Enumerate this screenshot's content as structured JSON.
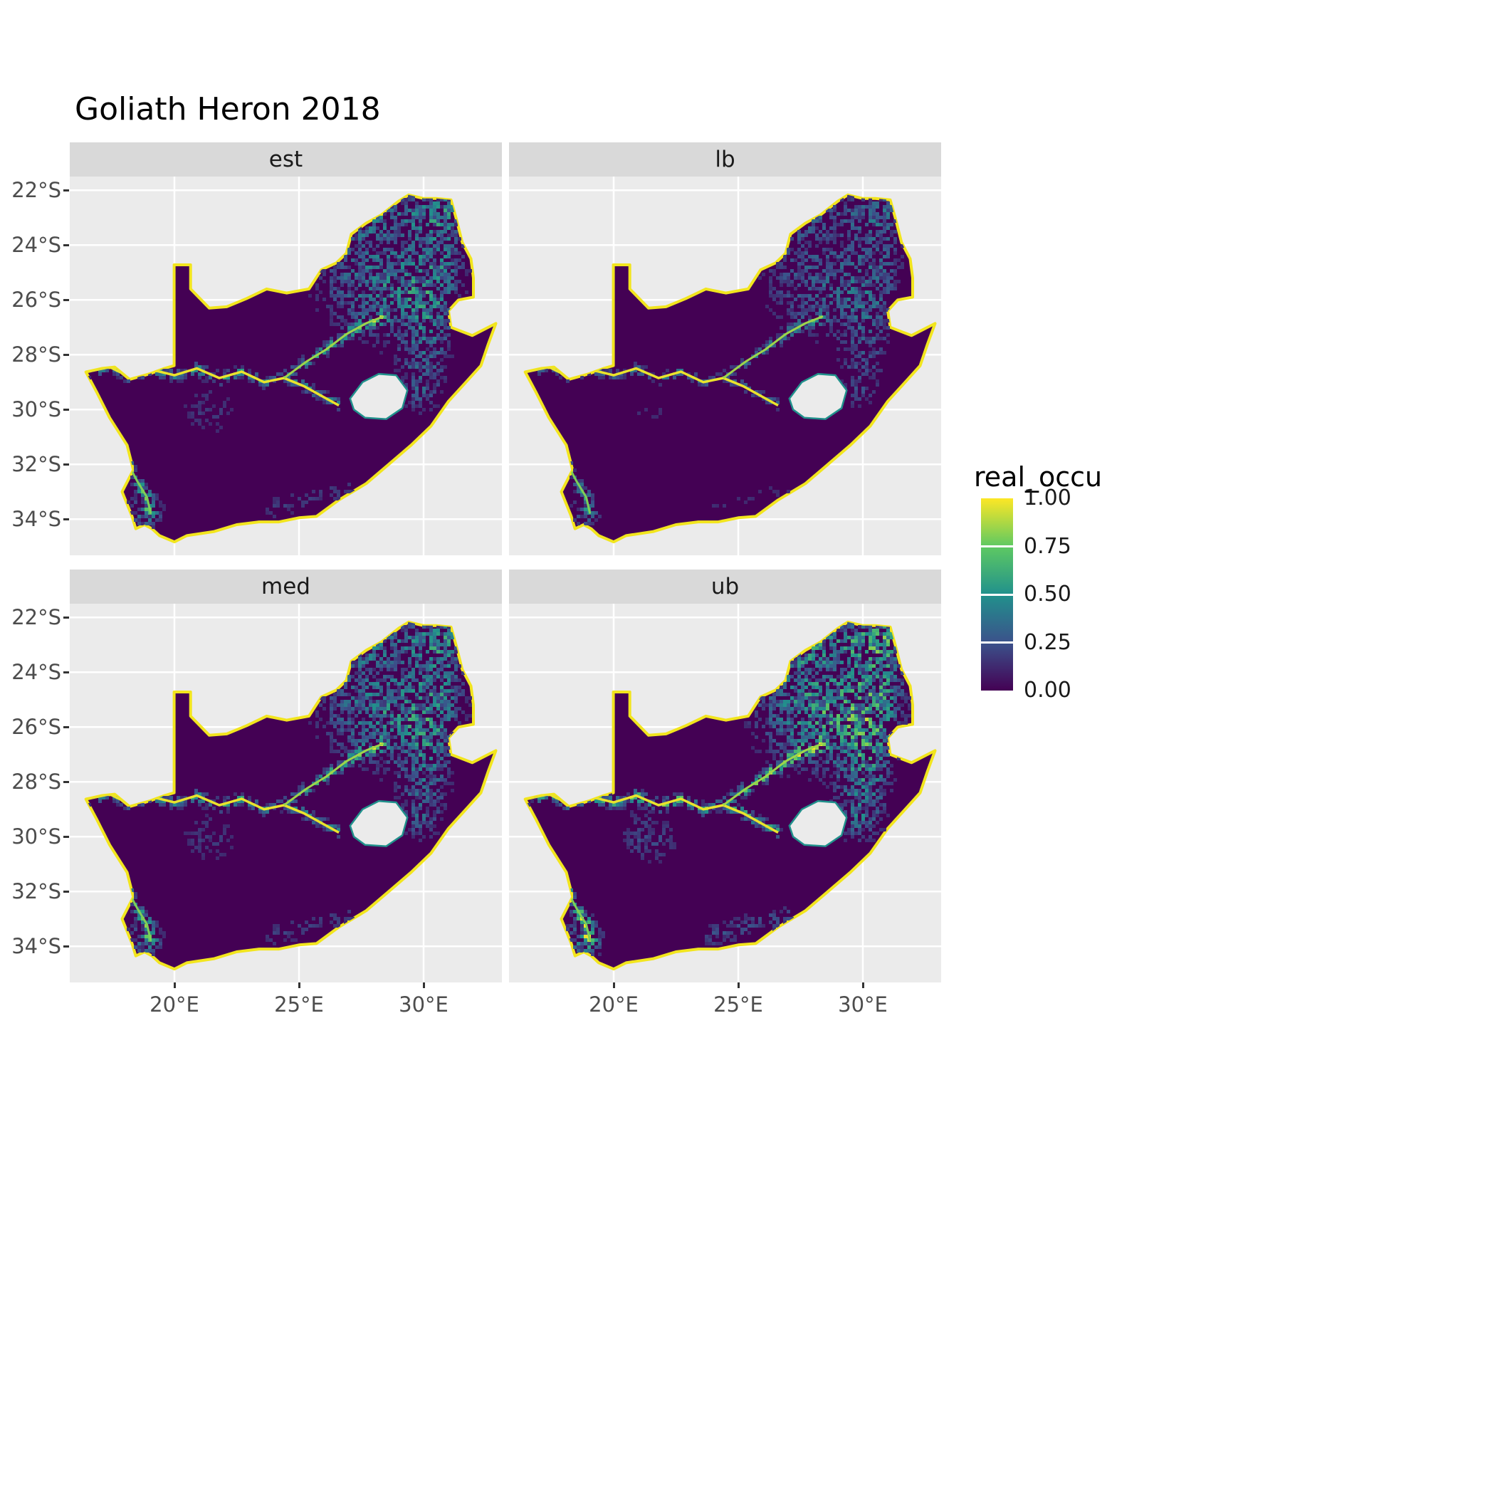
{
  "title": "Goliath Heron 2018",
  "facets": [
    {
      "label": "est"
    },
    {
      "label": "lb"
    },
    {
      "label": "med"
    },
    {
      "label": "ub"
    }
  ],
  "axes": {
    "y_ticks": [
      "22°S",
      "24°S",
      "26°S",
      "28°S",
      "30°S",
      "32°S",
      "34°S"
    ],
    "x_ticks": [
      "20°E",
      "25°E",
      "30°E"
    ]
  },
  "legend": {
    "title": "real_occu",
    "ticks": [
      "1.00",
      "0.75",
      "0.50",
      "0.25",
      "0.00"
    ]
  },
  "colors": {
    "background": "#FFFFFF",
    "panel_bg": "#EBEBEB",
    "strip_bg": "#D9D9D9",
    "grid": "#FFFFFF",
    "axis_text": "#4D4D4D",
    "strip_text": "#1A1A1A",
    "base_fill": "#440154",
    "coast_rim": "#F2E51E",
    "viridis": [
      "#440154",
      "#3B528B",
      "#21918C",
      "#5EC962",
      "#FDE725"
    ]
  },
  "chart_data": {
    "type": "heatmap",
    "title": "Goliath Heron 2018",
    "variable": "real_occu",
    "colormap": "viridis",
    "value_range": [
      0.0,
      1.0
    ],
    "legend_ticks": [
      1.0,
      0.75,
      0.5,
      0.25,
      0.0
    ],
    "facets": [
      "est",
      "lb",
      "med",
      "ub"
    ],
    "facet_relative_intensity": {
      "est": 1.0,
      "lb": 0.72,
      "med": 1.05,
      "ub": 1.35
    },
    "x_axis": {
      "ticks": [
        "20°E",
        "25°E",
        "30°E"
      ],
      "range_deg_east": [
        15.8,
        33.2
      ]
    },
    "y_axis": {
      "ticks": [
        "22°S",
        "24°S",
        "26°S",
        "28°S",
        "30°S",
        "32°S",
        "34°S"
      ],
      "range_deg_south": [
        21.5,
        35.3
      ]
    },
    "region": "South Africa (Lesotho and Eswatini shown as holes)",
    "description": "Four faceted raster maps of South Africa showing real_occu (occupancy, 0-1) on a viridis scale: mostly near zero (dark purple) with high values (green-yellow) along the coastline, major rivers, the eastern escarpment and the northeastern interior; lb is darkest, ub is brightest."
  }
}
